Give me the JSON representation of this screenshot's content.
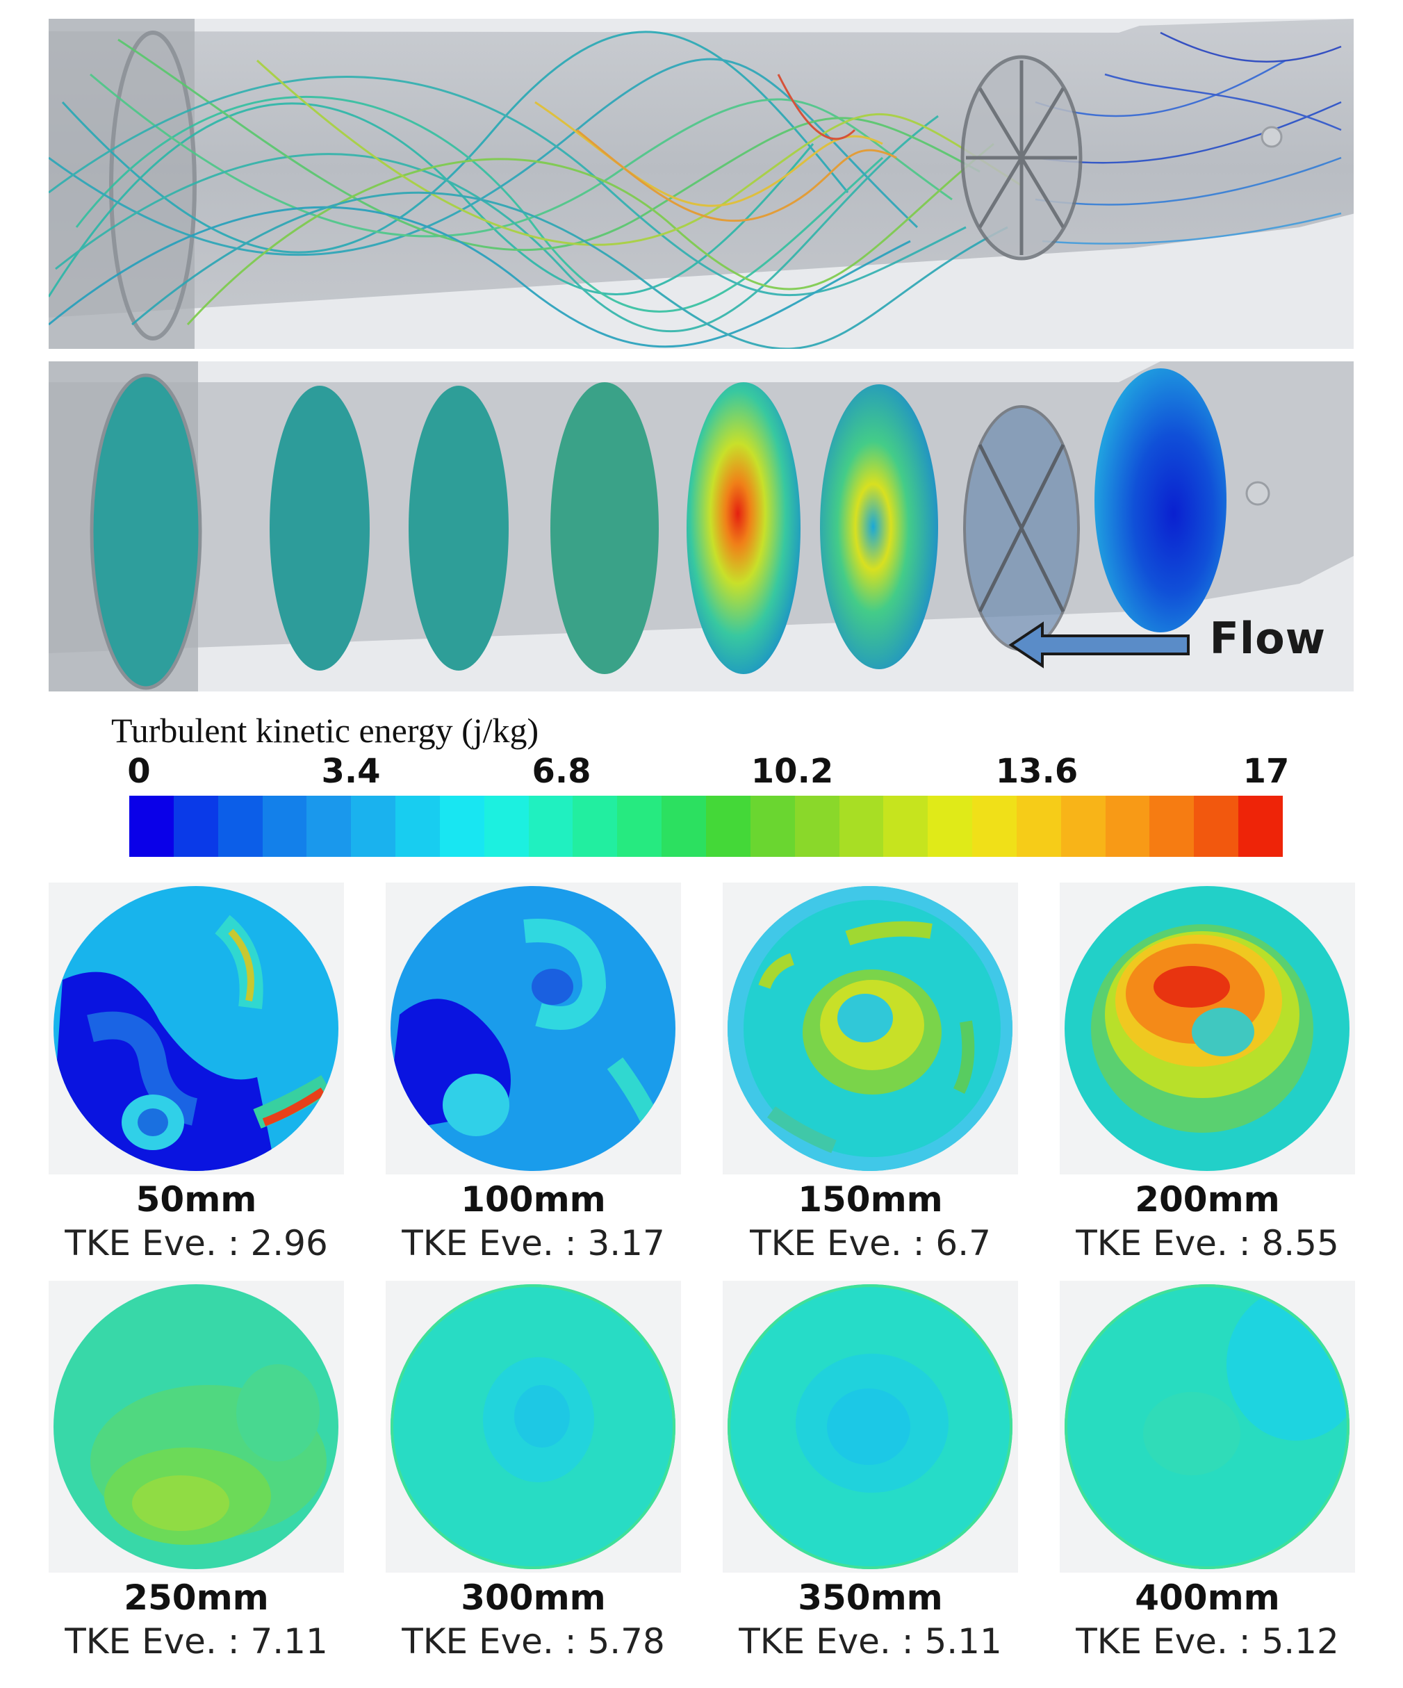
{
  "flow_label": "Flow",
  "colorbar": {
    "title": "Turbulent kinetic energy (j/kg)",
    "ticks": [
      "0",
      "3.4",
      "6.8",
      "10.2",
      "13.6",
      "17"
    ],
    "colors": [
      "#0a00e8",
      "#0a3ae8",
      "#0c5ee8",
      "#1380ea",
      "#1a98ec",
      "#1ab2ee",
      "#18cdf0",
      "#18e6f2",
      "#1cf0e0",
      "#20f0c0",
      "#22eea0",
      "#26ea80",
      "#2ce060",
      "#44d838",
      "#6ad630",
      "#8ad82a",
      "#a8de24",
      "#c6e41e",
      "#e0ea18",
      "#f0e018",
      "#f6cc18",
      "#f8b418",
      "#f89a16",
      "#f67c12",
      "#f2580e",
      "#ee2408"
    ]
  },
  "sections": [
    {
      "position": "50mm",
      "tke": "TKE Eve. : 2.96"
    },
    {
      "position": "100mm",
      "tke": "TKE Eve. : 3.17"
    },
    {
      "position": "150mm",
      "tke": "TKE Eve. : 6.7"
    },
    {
      "position": "200mm",
      "tke": "TKE Eve. : 8.55"
    },
    {
      "position": "250mm",
      "tke": "TKE Eve. : 7.11"
    },
    {
      "position": "300mm",
      "tke": "TKE Eve. : 5.78"
    },
    {
      "position": "350mm",
      "tke": "TKE Eve. : 5.11"
    },
    {
      "position": "400mm",
      "tke": "TKE Eve. : 5.12"
    }
  ]
}
